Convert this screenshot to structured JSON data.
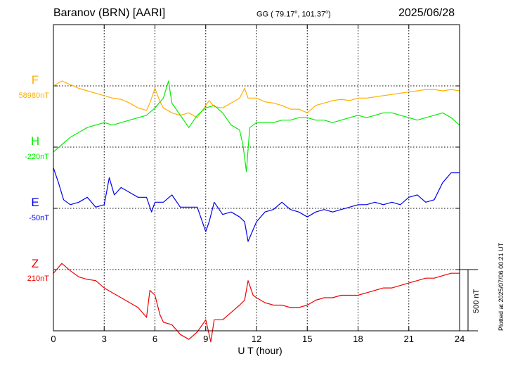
{
  "header": {
    "station": "Baranov (BRN)  [AARI]",
    "coords_prefix": "GG ( 79.17",
    "coords_sep": ", 101.37",
    "coords_suffix": ")",
    "deg": "o",
    "date": "2025/06/28"
  },
  "footer": {
    "xlabel": "U T (hour)",
    "scale_label": "500 nT",
    "plotted": "Plotted at 2025/07/06 00:21 UT"
  },
  "colors": {
    "F": "#ffb000",
    "H": "#00ee00",
    "E": "#0000ee",
    "Z": "#ee0000",
    "grid": "#000000"
  },
  "chart_data": {
    "type": "line",
    "x_range": [
      0,
      24
    ],
    "x_ticks": [
      "0",
      "3",
      "6",
      "9",
      "12",
      "15",
      "18",
      "21",
      "24"
    ],
    "x_tick_values": [
      0,
      3,
      6,
      9,
      12,
      15,
      18,
      21,
      24
    ],
    "grid": true,
    "scale_bar_nT": 500,
    "series": [
      {
        "key": "F",
        "name": "F",
        "baseline_label": "58980nT",
        "baseline": 58980,
        "x": [
          0,
          0.5,
          1,
          1.5,
          2,
          2.5,
          3,
          3.5,
          4,
          4.5,
          5,
          5.5,
          5.7,
          6,
          6.3,
          6.5,
          7,
          7.5,
          8,
          8.5,
          9,
          9.2,
          9.5,
          10,
          10.5,
          11,
          11.3,
          11.5,
          12,
          12.5,
          13,
          13.5,
          14,
          14.5,
          15,
          15.5,
          16,
          16.5,
          17,
          17.5,
          18,
          18.5,
          19,
          19.5,
          20,
          20.5,
          21,
          21.5,
          22,
          22.5,
          23,
          23.5,
          24
        ],
        "values": [
          58980,
          59020,
          58990,
          58960,
          58940,
          58920,
          58900,
          58880,
          58870,
          58840,
          58800,
          58780,
          58840,
          58960,
          58850,
          58800,
          58760,
          58740,
          58760,
          58720,
          58820,
          58860,
          58810,
          58800,
          58840,
          58880,
          58960,
          58880,
          58880,
          58850,
          58840,
          58820,
          58790,
          58790,
          58760,
          58820,
          58840,
          58860,
          58870,
          58860,
          58880,
          58880,
          58890,
          58900,
          58910,
          58920,
          58930,
          58940,
          58950,
          58950,
          58940,
          58950,
          58940
        ]
      },
      {
        "key": "H",
        "name": "H",
        "baseline_label": "-220nT",
        "baseline": -220,
        "x": [
          0,
          0.5,
          1,
          1.5,
          2,
          2.5,
          3,
          3.5,
          4,
          4.5,
          5,
          5.5,
          6,
          6.5,
          6.8,
          7,
          7.5,
          8,
          8.5,
          9,
          9.5,
          10,
          10.5,
          11,
          11.2,
          11.4,
          11.6,
          12,
          12.5,
          13,
          13.5,
          14,
          14.5,
          15,
          15.5,
          16,
          16.5,
          17,
          17.5,
          18,
          18.5,
          19,
          19.5,
          20,
          20.5,
          21,
          21.5,
          22,
          22.5,
          23,
          23.5,
          24
        ],
        "values": [
          -260,
          -200,
          -140,
          -100,
          -60,
          -40,
          -20,
          -40,
          -20,
          0,
          20,
          40,
          100,
          180,
          320,
          140,
          40,
          -60,
          40,
          100,
          120,
          60,
          -40,
          -80,
          -200,
          -420,
          -60,
          -20,
          -20,
          -20,
          0,
          0,
          20,
          20,
          0,
          0,
          -20,
          0,
          20,
          40,
          20,
          40,
          60,
          60,
          40,
          20,
          0,
          20,
          40,
          60,
          20,
          -40
        ]
      },
      {
        "key": "E",
        "name": "E",
        "baseline_label": "-50nT",
        "baseline": -50,
        "x": [
          0,
          0.3,
          0.6,
          1,
          1.5,
          2,
          2.5,
          3,
          3.3,
          3.6,
          4,
          4.5,
          5,
          5.5,
          5.8,
          6,
          6.5,
          7,
          7.5,
          8,
          8.5,
          9,
          9.2,
          9.5,
          10,
          10.5,
          11,
          11.3,
          11.5,
          12,
          12.5,
          13,
          13.5,
          14,
          14.5,
          15,
          15.5,
          16,
          16.5,
          17,
          17.5,
          18,
          18.5,
          19,
          19.5,
          20,
          20.5,
          21,
          21.5,
          22,
          22.5,
          23,
          23.5,
          24
        ],
        "values": [
          280,
          160,
          20,
          -20,
          0,
          40,
          -40,
          -20,
          200,
          60,
          120,
          80,
          40,
          40,
          -80,
          0,
          0,
          60,
          -40,
          -40,
          -40,
          -240,
          -160,
          0,
          -100,
          -80,
          -120,
          -160,
          -320,
          -160,
          -80,
          -60,
          0,
          -60,
          -80,
          -120,
          -80,
          -60,
          -80,
          -60,
          -40,
          -20,
          -20,
          0,
          -20,
          0,
          -20,
          40,
          60,
          0,
          20,
          160,
          240,
          240
        ]
      },
      {
        "key": "Z",
        "name": "Z",
        "baseline_label": "210nT",
        "baseline": 210,
        "x": [
          0,
          0.5,
          1,
          1.5,
          2,
          2.5,
          3,
          3.5,
          4,
          4.5,
          5,
          5.5,
          5.7,
          6,
          6.3,
          6.5,
          7,
          7.5,
          8,
          8.5,
          9,
          9.3,
          9.5,
          10,
          10.5,
          11,
          11.3,
          11.5,
          11.8,
          12,
          12.5,
          13,
          13.5,
          14,
          14.5,
          15,
          15.5,
          16,
          16.5,
          17,
          17.5,
          18,
          18.5,
          19,
          19.5,
          20,
          20.5,
          21,
          21.5,
          22,
          22.5,
          23,
          23.5,
          24
        ],
        "values": [
          180,
          260,
          200,
          150,
          130,
          120,
          60,
          20,
          -20,
          -60,
          -100,
          -180,
          40,
          0,
          -160,
          -220,
          -240,
          -320,
          -360,
          -300,
          -200,
          -380,
          -200,
          -200,
          -140,
          -80,
          -40,
          120,
          0,
          -20,
          -60,
          -80,
          -80,
          -100,
          -100,
          -80,
          -40,
          -20,
          -20,
          0,
          0,
          0,
          20,
          40,
          60,
          60,
          80,
          100,
          120,
          140,
          140,
          160,
          180,
          180
        ]
      }
    ]
  }
}
